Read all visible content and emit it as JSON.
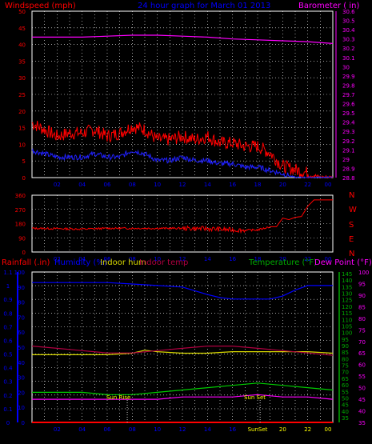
{
  "header": {
    "windspeed_label": "Windspeed (mph)",
    "title": "24 hour graph for March 01 2013",
    "barometer_label": "Barometer ( in)"
  },
  "compass": [
    "N",
    "W",
    "S",
    "E",
    "N"
  ],
  "legend_bottom": {
    "rainfall": "Rainfall (.in)",
    "humidity": "Humidity (%)",
    "indoor_hum": "Indoor hum",
    "indoor_temp": "Indoor temp",
    "temperature": "Temperature (°F)",
    "dew_point": "Dew Point (°F)"
  },
  "annotations": {
    "sun_rise": "Sun Rise",
    "sun_set": "Sun Set",
    "sun_set_tick": "SunSet"
  },
  "colors": {
    "wind_gust": "#ff0000",
    "wind_avg": "#2020ff",
    "barometer": "#ff00ff",
    "direction": "#ff0000",
    "rainfall": "#ff0000",
    "humidity": "#0000ff",
    "indoor_hum": "#d8d800",
    "indoor_temp": "#b00040",
    "temperature": "#00cc00",
    "dew_point": "#ff00ff",
    "grid": "#ffffff",
    "axis_left": "#0000ff",
    "axis_right": "#00aa00"
  },
  "chart_data": [
    {
      "type": "line",
      "name": "wind-barometer",
      "x_ticks": [
        "02",
        "04",
        "06",
        "08",
        "10",
        "12",
        "14",
        "16",
        "18",
        "20",
        "22",
        "00"
      ],
      "y_left_ticks": [
        "0",
        "5",
        "10",
        "15",
        "20",
        "25",
        "30",
        "35",
        "40",
        "45",
        "50"
      ],
      "y_left_lim": [
        0,
        50
      ],
      "y_right_ticks": [
        "28.8",
        "28.9",
        "29",
        "29.1",
        "29.2",
        "29.3",
        "29.4",
        "29.5",
        "29.6",
        "29.7",
        "29.8",
        "29.9",
        "30",
        "30.1",
        "30.2",
        "30.3",
        "30.4",
        "30.5",
        "30.6"
      ],
      "y_right_lim": [
        28.8,
        30.6
      ],
      "series": [
        {
          "name": "Windspeed (mph)",
          "axis": "left",
          "style": "gust",
          "x": [
            0,
            1,
            2,
            3,
            4,
            5,
            6,
            7,
            8,
            9,
            10,
            11,
            12,
            13,
            14,
            15,
            16,
            17,
            18,
            19,
            20,
            21,
            22,
            23,
            24
          ],
          "y": [
            16,
            14,
            12,
            13,
            13,
            14,
            12,
            13,
            15,
            14,
            11,
            11,
            12,
            11,
            12,
            10,
            10,
            9,
            9,
            7,
            3,
            2,
            1,
            0,
            0
          ]
        },
        {
          "axis": "left",
          "style": "avg",
          "x": [
            0,
            1,
            2,
            3,
            4,
            5,
            6,
            7,
            8,
            9,
            10,
            11,
            12,
            13,
            14,
            15,
            16,
            17,
            18,
            19,
            20,
            21,
            22,
            23,
            24
          ],
          "y": [
            8,
            7,
            6,
            6,
            6,
            7,
            6,
            6,
            8,
            7,
            5,
            5,
            6,
            5,
            5,
            4,
            4,
            3,
            3,
            2,
            1,
            0,
            0,
            0,
            0
          ]
        },
        {
          "name": "Barometer ( in)",
          "axis": "right",
          "style": "baro",
          "x": [
            0,
            2,
            4,
            6,
            8,
            10,
            12,
            14,
            16,
            18,
            20,
            22,
            24
          ],
          "y": [
            30.32,
            30.32,
            30.32,
            30.33,
            30.34,
            30.34,
            30.33,
            30.32,
            30.3,
            30.29,
            30.28,
            30.27,
            30.25
          ]
        }
      ]
    },
    {
      "type": "line",
      "name": "wind-direction",
      "x_ticks": [
        "02",
        "04",
        "06",
        "08",
        "10",
        "12",
        "14",
        "16",
        "18",
        "20",
        "22",
        "00"
      ],
      "y_ticks": [
        "0",
        "90",
        "180",
        "270",
        "360"
      ],
      "y_lim": [
        0,
        360
      ],
      "series": [
        {
          "x": [
            0,
            2,
            4,
            6,
            8,
            10,
            12,
            14,
            16,
            17,
            18,
            19,
            19.5,
            20,
            20.5,
            21,
            21.5,
            22,
            22.5,
            24
          ],
          "y": [
            150,
            148,
            145,
            150,
            150,
            150,
            150,
            148,
            140,
            138,
            140,
            160,
            160,
            215,
            205,
            220,
            225,
            290,
            330,
            330
          ]
        }
      ]
    },
    {
      "type": "line",
      "name": "humidity-temperature",
      "x_ticks": [
        "02",
        "04",
        "06",
        "08",
        "10",
        "12",
        "14",
        "16",
        "SunSet",
        "20",
        "22",
        "00"
      ],
      "y_left_ticks": [
        "0",
        "0.1",
        "0.2",
        "0.3",
        "0.4",
        "0.5",
        "0.6",
        "0.7",
        "0.8",
        "0.9",
        "1",
        "1.1"
      ],
      "y_left_lim": [
        0,
        1.1
      ],
      "y_mid_ticks": [
        "0",
        "10",
        "20",
        "30",
        "40",
        "50",
        "60",
        "70",
        "80",
        "90",
        "100"
      ],
      "y_mid_lim": [
        0,
        100
      ],
      "y_right_outer_ticks": [
        "35",
        "40",
        "45",
        "50",
        "55",
        "60",
        "65",
        "70",
        "75",
        "80",
        "85",
        "90",
        "95",
        "100",
        "105",
        "110",
        "115",
        "120",
        "125",
        "130",
        "135",
        "140",
        "145"
      ],
      "y_right_inner_ticks": [
        "35",
        "40",
        "45",
        "50",
        "55",
        "60",
        "65",
        "70",
        "75",
        "80",
        "85",
        "90",
        "95",
        "100"
      ],
      "y_right_lim": [
        35,
        100
      ],
      "series": [
        {
          "name": "Rainfall (.in)",
          "key": "rainfall",
          "x": [
            0,
            24
          ],
          "y": [
            0,
            0
          ]
        },
        {
          "name": "Humidity (%)",
          "key": "humidity",
          "x": [
            0,
            2,
            4,
            6,
            8,
            10,
            12,
            14,
            15,
            16,
            17,
            18,
            19,
            20,
            21,
            22,
            23,
            24
          ],
          "y": [
            93,
            93,
            93,
            93,
            92,
            91,
            90,
            85,
            83,
            82,
            82,
            82,
            82,
            84,
            88,
            91,
            91,
            91
          ]
        },
        {
          "name": "Indoor hum",
          "key": "indoor_hum",
          "x": [
            0,
            4,
            6,
            8,
            9,
            10,
            12,
            14,
            16,
            18,
            20,
            22,
            24
          ],
          "y": [
            45,
            45,
            45,
            46,
            48,
            47,
            46,
            46,
            47,
            47,
            47,
            47,
            46
          ]
        },
        {
          "name": "Indoor temp",
          "key": "indoor_temp",
          "x": [
            0,
            2,
            4,
            6,
            8,
            10,
            12,
            14,
            16,
            18,
            20,
            22,
            24
          ],
          "y": [
            68,
            67,
            66,
            65,
            65,
            66,
            67,
            68,
            68,
            67,
            66,
            65,
            64
          ]
        },
        {
          "name": "Temperature (°F)",
          "key": "temperature",
          "x": [
            0,
            4,
            6,
            8,
            10,
            12,
            14,
            16,
            18,
            20,
            22,
            24
          ],
          "y": [
            48,
            48,
            47,
            47,
            48,
            49,
            50,
            51,
            52,
            51,
            50,
            49
          ]
        },
        {
          "name": "Dew Point (°F)",
          "key": "dew_point",
          "x": [
            0,
            4,
            6,
            8,
            10,
            12,
            14,
            16,
            18,
            20,
            22,
            24
          ],
          "y": [
            45,
            45,
            45,
            45,
            45,
            46,
            46,
            46,
            47,
            46,
            46,
            45
          ]
        }
      ],
      "annotations": [
        {
          "label": "Sun Rise",
          "x": 7.6
        },
        {
          "label": "Sun Set",
          "x": 18.2
        }
      ]
    }
  ]
}
